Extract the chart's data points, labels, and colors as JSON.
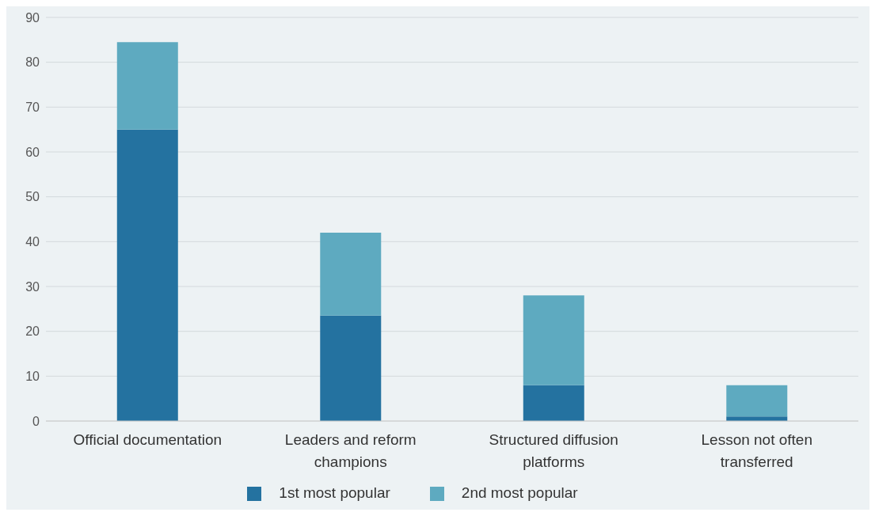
{
  "chart_data": {
    "type": "bar",
    "stacked": true,
    "categories": [
      "Official documentation",
      "Leaders and reform champions",
      "Structured diffusion platforms",
      "Lesson not often transferred"
    ],
    "series": [
      {
        "name": "1st most popular",
        "color": "#2472a0",
        "values": [
          65,
          23.5,
          8,
          1
        ]
      },
      {
        "name": "2nd most popular",
        "color": "#5eaac0",
        "values": [
          19.5,
          18.5,
          20,
          7
        ]
      }
    ],
    "ylim": [
      0,
      90
    ],
    "yticks": [
      0,
      10,
      20,
      30,
      40,
      50,
      60,
      70,
      80,
      90
    ],
    "grid": "y",
    "legend": "bottom"
  }
}
